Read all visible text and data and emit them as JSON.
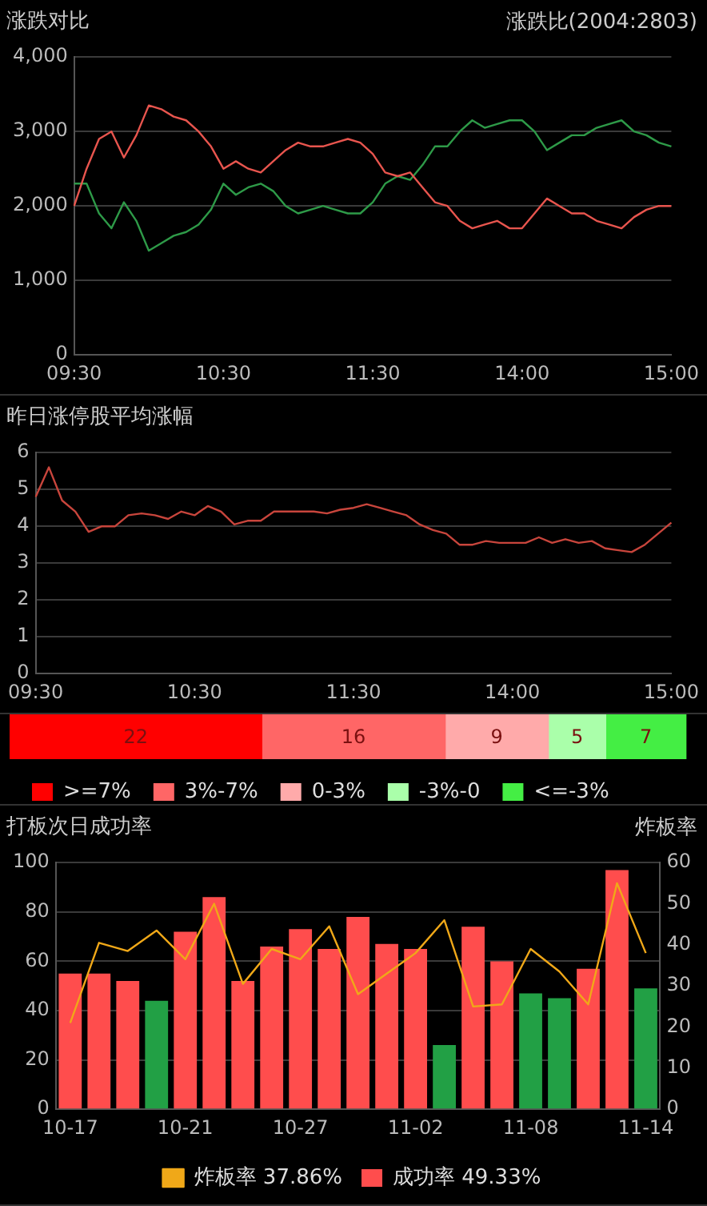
{
  "chart_data": [
    {
      "type": "line",
      "title": "涨跌对比",
      "annotations": [
        "涨跌比(2004:2803)"
      ],
      "marker": "none",
      "grid": "y",
      "legend": false,
      "categories": [
        "09:30",
        null,
        null,
        null,
        null,
        null,
        null,
        null,
        null,
        null,
        null,
        null,
        "10:30",
        null,
        null,
        null,
        null,
        null,
        null,
        null,
        null,
        null,
        null,
        null,
        "11:30",
        null,
        null,
        null,
        null,
        null,
        null,
        null,
        null,
        null,
        null,
        null,
        "14:00",
        null,
        null,
        null,
        null,
        null,
        null,
        null,
        null,
        null,
        null,
        null,
        "15:00"
      ],
      "ylim": [
        0,
        4000
      ],
      "yticks": [
        0,
        {
          "value": 1000,
          "label": "1,000"
        },
        {
          "value": 2000,
          "label": "2,000"
        },
        {
          "value": 3000,
          "label": "3,000"
        },
        {
          "value": 4000,
          "label": "4,000"
        }
      ],
      "series": [
        {
          "color": "#e8554e",
          "values": [
            2000,
            2500,
            2900,
            3000,
            2650,
            2950,
            3350,
            3300,
            3200,
            3150,
            3000,
            2800,
            2500,
            2600,
            2500,
            2450,
            2600,
            2750,
            2850,
            2800,
            2800,
            2850,
            2900,
            2850,
            2700,
            2450,
            2400,
            2450,
            2250,
            2050,
            2000,
            1800,
            1700,
            1750,
            1800,
            1700,
            1700,
            1900,
            2100,
            2000,
            1900,
            1900,
            1800,
            1750,
            1700,
            1850,
            1950,
            2000,
            2000
          ]
        },
        {
          "color": "#2e9a48",
          "values": [
            2300,
            2300,
            1900,
            1700,
            2050,
            1800,
            1400,
            1500,
            1600,
            1650,
            1750,
            1950,
            2300,
            2150,
            2250,
            2300,
            2200,
            2000,
            1900,
            1950,
            2000,
            1950,
            1900,
            1900,
            2050,
            2300,
            2400,
            2350,
            2550,
            2800,
            2800,
            3000,
            3150,
            3050,
            3100,
            3150,
            3150,
            3000,
            2750,
            2850,
            2950,
            2950,
            3050,
            3100,
            3150,
            3000,
            2950,
            2850,
            2800
          ]
        }
      ]
    },
    {
      "type": "line",
      "title": "昨日涨停股平均涨幅",
      "marker": "none",
      "grid": "y",
      "legend": false,
      "categories": [
        "09:30",
        null,
        null,
        null,
        null,
        null,
        null,
        null,
        null,
        null,
        null,
        null,
        "10:30",
        null,
        null,
        null,
        null,
        null,
        null,
        null,
        null,
        null,
        null,
        null,
        "11:30",
        null,
        null,
        null,
        null,
        null,
        null,
        null,
        null,
        null,
        null,
        null,
        "14:00",
        null,
        null,
        null,
        null,
        null,
        null,
        null,
        null,
        null,
        null,
        null,
        "15:00"
      ],
      "ylim": [
        0,
        6
      ],
      "yticks": [
        0,
        1,
        2,
        3,
        4,
        5,
        6
      ],
      "series": [
        {
          "color": "#c8453c",
          "values": [
            4.8,
            5.6,
            4.7,
            4.4,
            3.85,
            4.0,
            4.0,
            4.3,
            4.35,
            4.3,
            4.2,
            4.4,
            4.3,
            4.55,
            4.4,
            4.05,
            4.15,
            4.15,
            4.4,
            4.4,
            4.4,
            4.4,
            4.35,
            4.45,
            4.5,
            4.6,
            4.5,
            4.4,
            4.3,
            4.05,
            3.9,
            3.8,
            3.5,
            3.5,
            3.6,
            3.55,
            3.55,
            3.55,
            3.7,
            3.55,
            3.65,
            3.55,
            3.6,
            3.4,
            3.35,
            3.3,
            3.5,
            3.8,
            4.1
          ]
        }
      ]
    },
    {
      "type": "bar",
      "orientation": "horizontal",
      "stacked": true,
      "data_labels": true,
      "legend": "bottom",
      "categories": [
        null
      ],
      "series": [
        {
          "name": ">=7%",
          "color": "#ff0000",
          "values": [
            22
          ]
        },
        {
          "name": "3%-7%",
          "color": "#ff6666",
          "values": [
            16
          ]
        },
        {
          "name": "0-3%",
          "color": "#ffaaaa",
          "values": [
            9
          ]
        },
        {
          "name": "-3%-0",
          "color": "#aaffaa",
          "values": [
            5
          ]
        },
        {
          "name": "<=-3%",
          "color": "#44ee44",
          "values": [
            7
          ]
        }
      ]
    },
    {
      "type": "bar",
      "title": "打板次日成功率",
      "y2label": "炸板率",
      "grid": "y",
      "legend": "bottom",
      "marker": "none",
      "categories": [
        "10-17",
        null,
        null,
        null,
        "10-21",
        null,
        null,
        null,
        "10-27",
        null,
        null,
        null,
        "11-02",
        null,
        null,
        null,
        "11-08",
        null,
        null,
        null,
        "11-14"
      ],
      "ylim": [
        0,
        100
      ],
      "yticks": [
        0,
        20,
        40,
        60,
        80,
        100
      ],
      "y2lim": [
        0,
        60
      ],
      "y2ticks": [
        0,
        10,
        20,
        30,
        40,
        50,
        60
      ],
      "series": [
        {
          "name": "成功率 49.33%",
          "colors": [
            "#ff4d4d",
            "#ff4d4d",
            "#ff4d4d",
            "#22a045",
            "#ff4d4d",
            "#ff4d4d",
            "#ff4d4d",
            "#ff4d4d",
            "#ff4d4d",
            "#ff4d4d",
            "#ff4d4d",
            "#ff4d4d",
            "#ff4d4d",
            "#22a045",
            "#ff4d4d",
            "#ff4d4d",
            "#22a045",
            "#22a045",
            "#ff4d4d",
            "#ff4d4d",
            "#22a045"
          ],
          "values": [
            55,
            55,
            52,
            44,
            72,
            86,
            52,
            66,
            73,
            65,
            78,
            67,
            65,
            26,
            74,
            60,
            47,
            45,
            57,
            97,
            49
          ]
        },
        {
          "name": "炸板率 37.86%",
          "type": "line",
          "axis": "y2",
          "color": "#f0a818",
          "values": [
            21,
            40.5,
            38.5,
            43.5,
            36.5,
            50,
            30.5,
            39,
            36.5,
            44.5,
            28,
            33,
            38,
            46,
            25,
            25.5,
            39,
            33.5,
            25.5,
            55,
            38
          ]
        }
      ]
    }
  ]
}
